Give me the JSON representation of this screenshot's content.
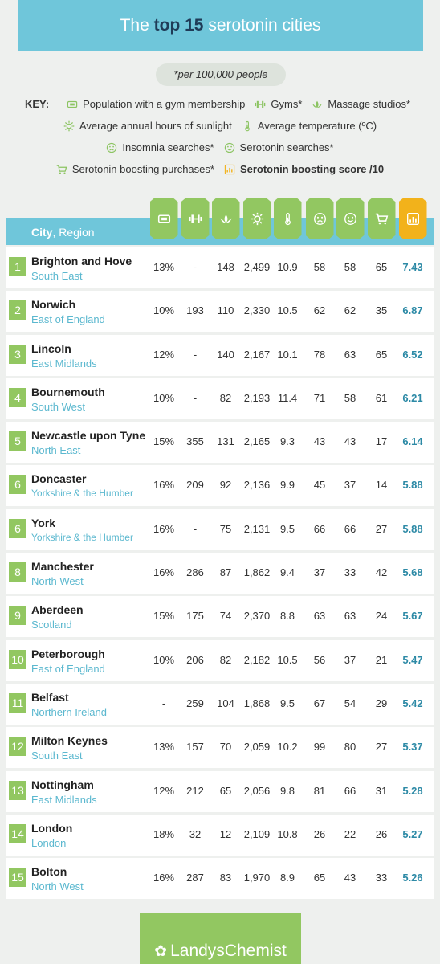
{
  "title": {
    "pre": "The ",
    "bold": "top 15",
    "post": " serotonin cities"
  },
  "note": "*per 100,000 people",
  "key": {
    "label": "KEY:",
    "rows": [
      [
        {
          "icon": "ticket-icon",
          "text": "Population with a gym membership"
        },
        {
          "icon": "dumbbell-icon",
          "text": "Gyms*"
        },
        {
          "icon": "lotus-icon",
          "text": "Massage studios*"
        }
      ],
      [
        {
          "icon": "sun-icon",
          "text": "Average annual hours of sunlight"
        },
        {
          "icon": "thermometer-icon",
          "text": "Average temperature (ºC)"
        }
      ],
      [
        {
          "icon": "sad-face-icon",
          "text": "Insomnia searches*"
        },
        {
          "icon": "happy-face-icon",
          "text": "Serotonin searches*"
        }
      ],
      [
        {
          "icon": "cart-icon",
          "text": "Serotonin boosting purchases*"
        },
        {
          "icon": "score-icon",
          "text": "Serotonin boosting score /10",
          "bold": true
        }
      ]
    ]
  },
  "table": {
    "city_header": "City",
    "region_header": ", Region",
    "columns": [
      "ticket-icon",
      "dumbbell-icon",
      "lotus-icon",
      "sun-icon",
      "thermometer-icon",
      "sad-face-icon",
      "happy-face-icon",
      "cart-icon",
      "score-icon"
    ],
    "rows": [
      {
        "rank": "1",
        "city": "Brighton and Hove",
        "region": "South East",
        "values": [
          "13%",
          "-",
          "148",
          "2,499",
          "10.9",
          "58",
          "58",
          "65",
          "7.43"
        ]
      },
      {
        "rank": "2",
        "city": "Norwich",
        "region": "East of England",
        "values": [
          "10%",
          "193",
          "110",
          "2,330",
          "10.5",
          "62",
          "62",
          "35",
          "6.87"
        ]
      },
      {
        "rank": "3",
        "city": "Lincoln",
        "region": "East Midlands",
        "values": [
          "12%",
          "-",
          "140",
          "2,167",
          "10.1",
          "78",
          "63",
          "65",
          "6.52"
        ]
      },
      {
        "rank": "4",
        "city": "Bournemouth",
        "region": "South West",
        "values": [
          "10%",
          "-",
          "82",
          "2,193",
          "11.4",
          "71",
          "58",
          "61",
          "6.21"
        ]
      },
      {
        "rank": "5",
        "city": "Newcastle upon Tyne",
        "region": "North East",
        "values": [
          "15%",
          "355",
          "131",
          "2,165",
          "9.3",
          "43",
          "43",
          "17",
          "6.14"
        ]
      },
      {
        "rank": "6",
        "city": "Doncaster",
        "region": "Yorkshire & the Humber",
        "values": [
          "16%",
          "209",
          "92",
          "2,136",
          "9.9",
          "45",
          "37",
          "14",
          "5.88"
        ]
      },
      {
        "rank": "6",
        "city": "York",
        "region": "Yorkshire & the Humber",
        "values": [
          "16%",
          "-",
          "75",
          "2,131",
          "9.5",
          "66",
          "66",
          "27",
          "5.88"
        ]
      },
      {
        "rank": "8",
        "city": "Manchester",
        "region": "North West",
        "values": [
          "16%",
          "286",
          "87",
          "1,862",
          "9.4",
          "37",
          "33",
          "42",
          "5.68"
        ]
      },
      {
        "rank": "9",
        "city": "Aberdeen",
        "region": "Scotland",
        "values": [
          "15%",
          "175",
          "74",
          "2,370",
          "8.8",
          "63",
          "63",
          "24",
          "5.67"
        ]
      },
      {
        "rank": "10",
        "city": "Peterborough",
        "region": "East of England",
        "values": [
          "10%",
          "206",
          "82",
          "2,182",
          "10.5",
          "56",
          "37",
          "21",
          "5.47"
        ]
      },
      {
        "rank": "11",
        "city": "Belfast",
        "region": "Northern Ireland",
        "values": [
          "-",
          "259",
          "104",
          "1,868",
          "9.5",
          "67",
          "54",
          "29",
          "5.42"
        ]
      },
      {
        "rank": "12",
        "city": "Milton Keynes",
        "region": "South East",
        "values": [
          "13%",
          "157",
          "70",
          "2,059",
          "10.2",
          "99",
          "80",
          "27",
          "5.37"
        ]
      },
      {
        "rank": "13",
        "city": "Nottingham",
        "region": "East Midlands",
        "values": [
          "12%",
          "212",
          "65",
          "2,056",
          "9.8",
          "81",
          "66",
          "31",
          "5.28"
        ]
      },
      {
        "rank": "14",
        "city": "London",
        "region": "London",
        "values": [
          "18%",
          "32",
          "12",
          "2,109",
          "10.8",
          "26",
          "22",
          "26",
          "5.27"
        ]
      },
      {
        "rank": "15",
        "city": "Bolton",
        "region": "North West",
        "values": [
          "16%",
          "287",
          "83",
          "1,970",
          "8.9",
          "65",
          "43",
          "33",
          "5.26"
        ]
      }
    ]
  },
  "footer": {
    "logo_text": "LandysChemist"
  },
  "colors": {
    "banner": "#6fc6da",
    "green": "#92c761",
    "orange": "#f2b21b",
    "region_text": "#5bb8cf",
    "score_text": "#2d8aa6"
  }
}
